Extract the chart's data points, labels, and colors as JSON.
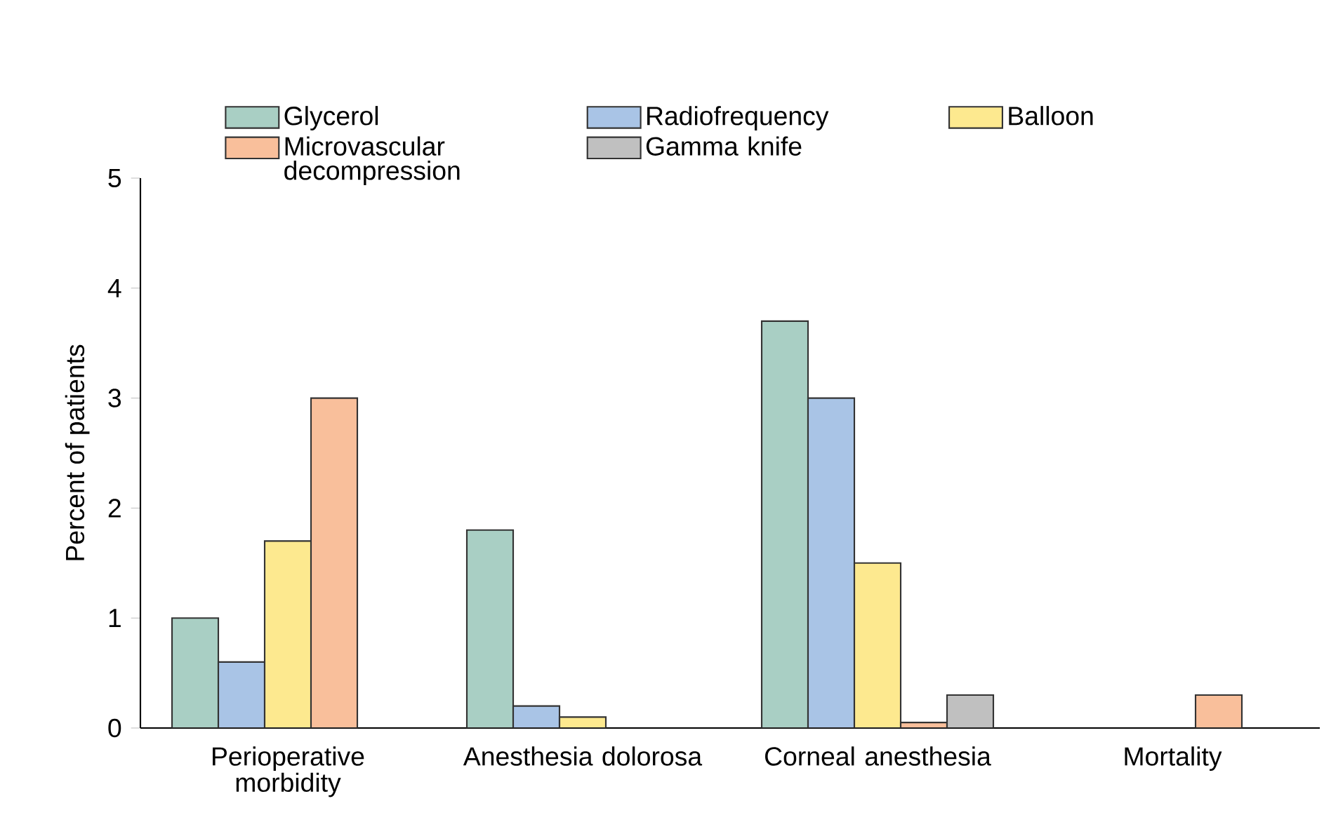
{
  "chart_data": {
    "type": "bar",
    "ylabel": "Percent of patients",
    "categories": [
      "Perioperative morbidity",
      "Anesthesia dolorosa",
      "Corneal anesthesia",
      "Mortality"
    ],
    "series": [
      {
        "name": "Glycerol",
        "color": "#a9cfc4",
        "values": [
          1.0,
          1.8,
          3.7,
          null
        ]
      },
      {
        "name": "Radiofrequency",
        "color": "#a9c4e6",
        "values": [
          0.6,
          0.2,
          3.0,
          null
        ]
      },
      {
        "name": "Balloon",
        "color": "#fde98f",
        "values": [
          1.7,
          0.1,
          1.5,
          null
        ]
      },
      {
        "name": "Microvascular decompression",
        "color": "#f9bf9b",
        "values": [
          3.0,
          null,
          0.05,
          0.3
        ]
      },
      {
        "name": "Gamma knife",
        "color": "#c0c0c0",
        "values": [
          null,
          null,
          0.3,
          null
        ]
      }
    ],
    "ylim": [
      0,
      5
    ],
    "yticks": [
      0,
      1,
      2,
      3,
      4,
      5
    ],
    "grid": false,
    "legend": "top"
  }
}
